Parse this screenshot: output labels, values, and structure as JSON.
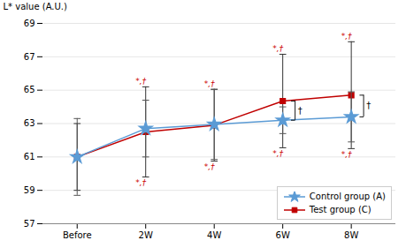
{
  "chart_data": {
    "type": "line",
    "categories": [
      "Before",
      "2W",
      "4W",
      "6W",
      "8W"
    ],
    "series": [
      {
        "name": "Control group (A)",
        "color": "#5b9bd5",
        "marker": "star",
        "values": [
          61.0,
          62.7,
          62.95,
          63.2,
          63.4
        ],
        "errors": [
          2.3,
          1.7,
          2.1,
          0.8,
          1.5
        ]
      },
      {
        "name": "Test group (C)",
        "color": "#c00000",
        "marker": "square",
        "values": [
          61.0,
          62.5,
          62.9,
          64.35,
          64.7
        ],
        "errors": [
          2.0,
          2.7,
          2.15,
          2.8,
          3.2
        ]
      }
    ],
    "ylabel": "L* value (A.U.)",
    "ylim": [
      57,
      69
    ],
    "yticks": [
      57,
      59,
      61,
      63,
      65,
      67,
      69
    ],
    "grid": true,
    "legend": "lower right",
    "annotations": [
      {
        "text": "*,†",
        "category": "2W",
        "series": "Test group (C)",
        "position": "above",
        "color": "#cc0000"
      },
      {
        "text": "*,†",
        "category": "2W",
        "series": "Test group (C)",
        "position": "below",
        "color": "#cc0000"
      },
      {
        "text": "*,†",
        "category": "4W",
        "series": "Test group (C)",
        "position": "above",
        "color": "#cc0000"
      },
      {
        "text": "*,†",
        "category": "4W",
        "series": "Test group (C)",
        "position": "below",
        "color": "#cc0000"
      },
      {
        "text": "*,†",
        "category": "6W",
        "series": "Test group (C)",
        "position": "above",
        "color": "#cc0000"
      },
      {
        "text": "*,†",
        "category": "6W",
        "series": "Test group (C)",
        "position": "below",
        "color": "#cc0000"
      },
      {
        "text": "*,†",
        "category": "8W",
        "series": "Test group (C)",
        "position": "above",
        "color": "#cc0000"
      },
      {
        "text": "*,†",
        "category": "8W",
        "series": "Test group (C)",
        "position": "below",
        "color": "#cc0000"
      }
    ],
    "brackets": [
      {
        "text": "†",
        "category": "6W"
      },
      {
        "text": "†",
        "category": "8W"
      }
    ]
  }
}
